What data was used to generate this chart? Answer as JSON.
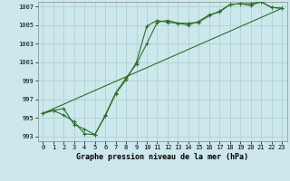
{
  "xlabel": "Graphe pression niveau de la mer (hPa)",
  "bg_color": "#cce8ec",
  "grid_color": "#aaccd0",
  "line_color": "#2d6e2d",
  "line1_x": [
    0,
    1,
    2,
    3,
    4,
    5,
    6,
    7,
    8,
    9,
    10,
    11,
    12,
    13,
    14,
    15,
    16,
    17,
    18,
    19,
    20,
    21,
    22,
    23
  ],
  "line1_y": [
    995.5,
    995.8,
    995.3,
    994.6,
    993.3,
    993.2,
    995.2,
    997.6,
    999.1,
    1001.0,
    1004.9,
    1005.5,
    1005.3,
    1005.2,
    1005.2,
    1005.3,
    1006.0,
    1006.5,
    1007.2,
    1007.3,
    1007.3,
    1007.5,
    1006.9,
    1006.8
  ],
  "line2_x": [
    0,
    1,
    2,
    3,
    4,
    5,
    6,
    7,
    8,
    9,
    10,
    11,
    12,
    13,
    14,
    15,
    16,
    17,
    18,
    19,
    20,
    21,
    22,
    23
  ],
  "line2_y": [
    995.5,
    995.8,
    996.0,
    994.3,
    993.8,
    993.2,
    995.3,
    997.7,
    999.3,
    1000.8,
    1003.0,
    1005.3,
    1005.5,
    1005.2,
    1005.0,
    1005.4,
    1006.1,
    1006.4,
    1007.2,
    1007.3,
    1007.1,
    1007.5,
    1006.9,
    1006.8
  ],
  "line3_x": [
    0,
    23
  ],
  "line3_y": [
    995.5,
    1006.8
  ],
  "ylim": [
    992.5,
    1007.5
  ],
  "xlim": [
    -0.5,
    23.5
  ],
  "yticks": [
    993,
    995,
    997,
    999,
    1001,
    1003,
    1005,
    1007
  ],
  "xticks": [
    0,
    1,
    2,
    3,
    4,
    5,
    6,
    7,
    8,
    9,
    10,
    11,
    12,
    13,
    14,
    15,
    16,
    17,
    18,
    19,
    20,
    21,
    22,
    23
  ],
  "tick_fontsize": 5.0,
  "xlabel_fontsize": 6.0,
  "linewidth": 0.8,
  "marker_size": 3.0
}
